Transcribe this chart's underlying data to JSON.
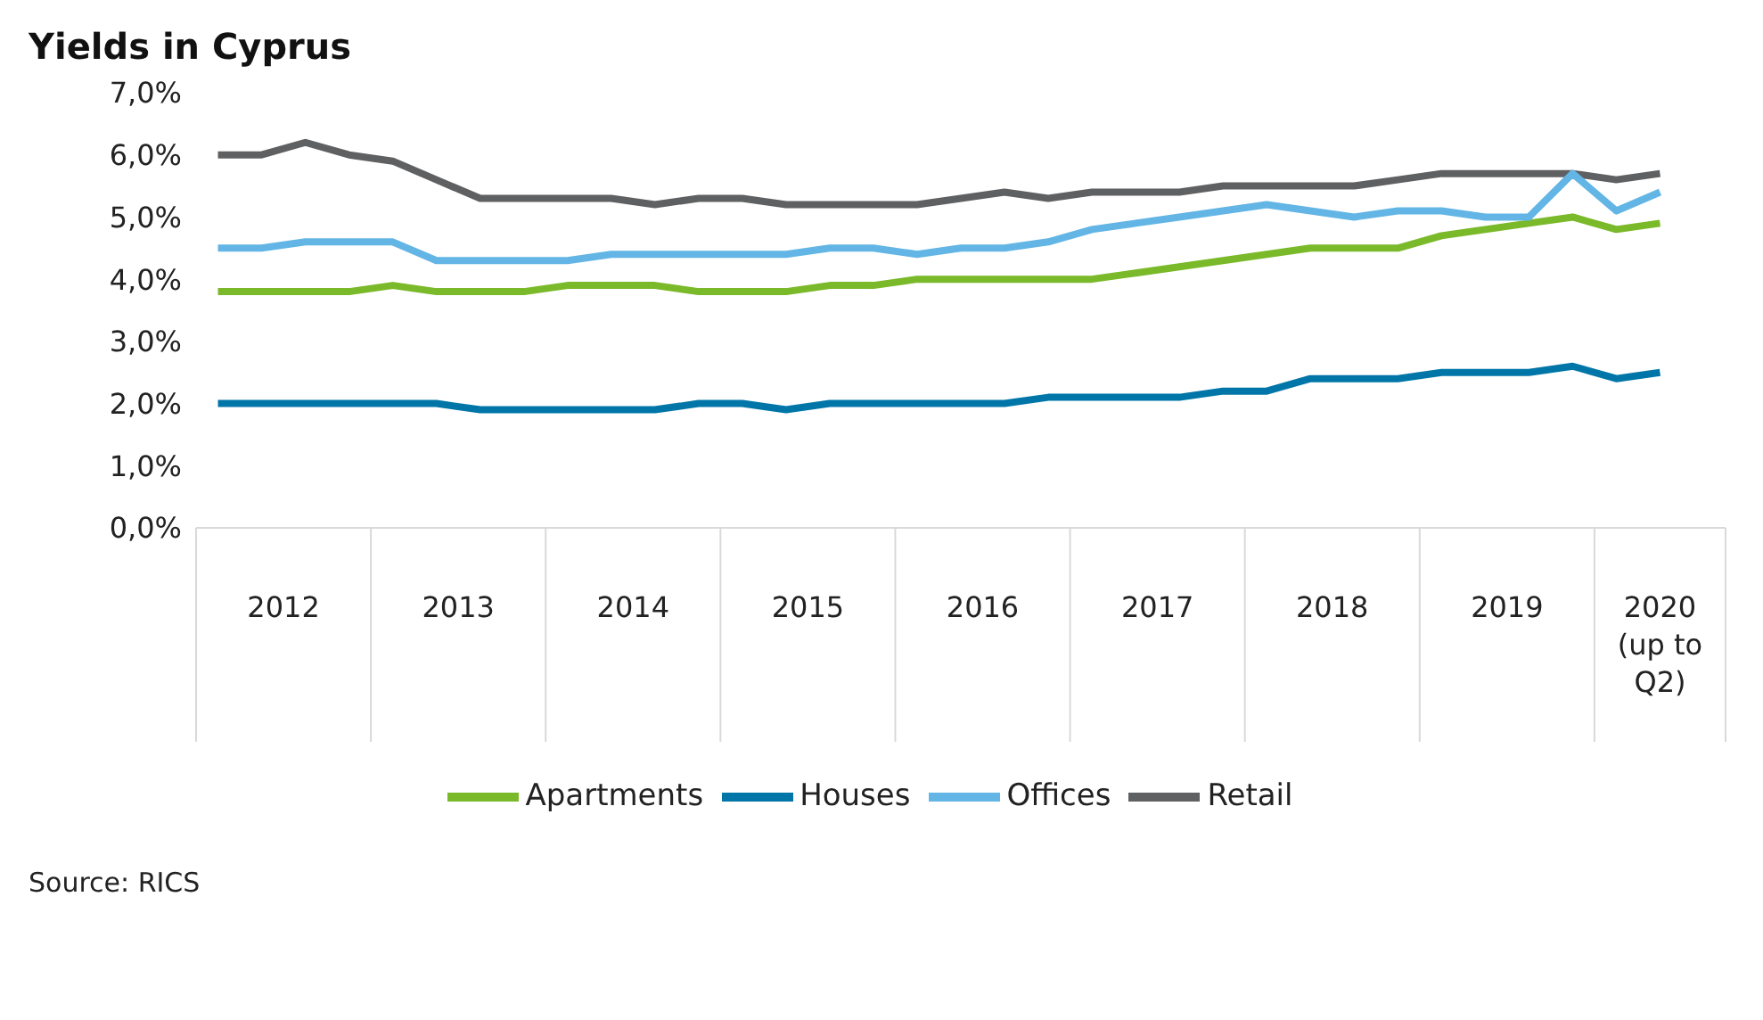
{
  "chart_data": {
    "type": "line",
    "title": "Yields in Cyprus",
    "annotations": [
      "Source: RICS"
    ],
    "x": [
      2012.125,
      2012.375,
      2012.625,
      2012.875,
      2013.125,
      2013.375,
      2013.625,
      2013.875,
      2014.125,
      2014.375,
      2014.625,
      2014.875,
      2015.125,
      2015.375,
      2015.625,
      2015.875,
      2016.125,
      2016.375,
      2016.625,
      2016.875,
      2017.125,
      2017.375,
      2017.625,
      2017.875,
      2018.125,
      2018.375,
      2018.625,
      2018.875,
      2019.125,
      2019.375,
      2019.625,
      2019.875,
      2020.125,
      2020.375
    ],
    "xlim": [
      2012,
      2020.75
    ],
    "xticks": [
      {
        "value": 2012.5,
        "label": "2012"
      },
      {
        "value": 2013.5,
        "label": "2013"
      },
      {
        "value": 2014.5,
        "label": "2014"
      },
      {
        "value": 2015.5,
        "label": "2015"
      },
      {
        "value": 2016.5,
        "label": "2016"
      },
      {
        "value": 2017.5,
        "label": "2017"
      },
      {
        "value": 2018.5,
        "label": "2018"
      },
      {
        "value": 2019.5,
        "label": "2019"
      },
      {
        "value": 2020.375,
        "label": "2020 (up to Q2)"
      }
    ],
    "series": [
      {
        "name": "Apartments",
        "color": "#7ab929",
        "values": [
          3.8,
          3.8,
          3.8,
          3.8,
          3.9,
          3.8,
          3.8,
          3.8,
          3.9,
          3.9,
          3.9,
          3.8,
          3.8,
          3.8,
          3.9,
          3.9,
          4.0,
          4.0,
          4.0,
          4.0,
          4.0,
          4.1,
          4.2,
          4.3,
          4.4,
          4.5,
          4.5,
          4.5,
          4.7,
          4.8,
          4.9,
          5.0,
          4.8,
          4.9
        ]
      },
      {
        "name": "Houses",
        "color": "#0076a8",
        "values": [
          2.0,
          2.0,
          2.0,
          2.0,
          2.0,
          2.0,
          1.9,
          1.9,
          1.9,
          1.9,
          1.9,
          2.0,
          2.0,
          1.9,
          2.0,
          2.0,
          2.0,
          2.0,
          2.0,
          2.1,
          2.1,
          2.1,
          2.1,
          2.2,
          2.2,
          2.4,
          2.4,
          2.4,
          2.5,
          2.5,
          2.5,
          2.6,
          2.4,
          2.5
        ]
      },
      {
        "name": "Retail",
        "color": "#5f6062",
        "values": [
          6.0,
          6.0,
          6.2,
          6.0,
          5.9,
          5.6,
          5.3,
          5.3,
          5.3,
          5.3,
          5.2,
          5.3,
          5.3,
          5.2,
          5.2,
          5.2,
          5.2,
          5.3,
          5.4,
          5.3,
          5.4,
          5.4,
          5.4,
          5.5,
          5.5,
          5.5,
          5.5,
          5.6,
          5.7,
          5.7,
          5.7,
          5.7,
          5.6,
          5.7
        ]
      },
      {
        "name": "Offices",
        "color": "#62b5e5",
        "values": [
          4.5,
          4.5,
          4.6,
          4.6,
          4.6,
          4.3,
          4.3,
          4.3,
          4.3,
          4.4,
          4.4,
          4.4,
          4.4,
          4.4,
          4.5,
          4.5,
          4.4,
          4.5,
          4.5,
          4.6,
          4.8,
          4.9,
          5.0,
          5.1,
          5.2,
          5.1,
          5.0,
          5.1,
          5.1,
          5.0,
          5.0,
          5.7,
          5.1,
          5.4
        ]
      }
    ],
    "ylim": [
      0,
      7
    ],
    "yticks": [
      {
        "value": 0,
        "label": "0,0%"
      },
      {
        "value": 1,
        "label": "1,0%"
      },
      {
        "value": 2,
        "label": "2,0%"
      },
      {
        "value": 3,
        "label": "3,0%"
      },
      {
        "value": 4,
        "label": "4,0%"
      },
      {
        "value": 5,
        "label": "5,0%"
      },
      {
        "value": 6,
        "label": "6,0%"
      },
      {
        "value": 7,
        "label": "7,0%"
      }
    ],
    "grid": false,
    "legend": "bottom",
    "marker": "none",
    "line_style": "solid"
  }
}
